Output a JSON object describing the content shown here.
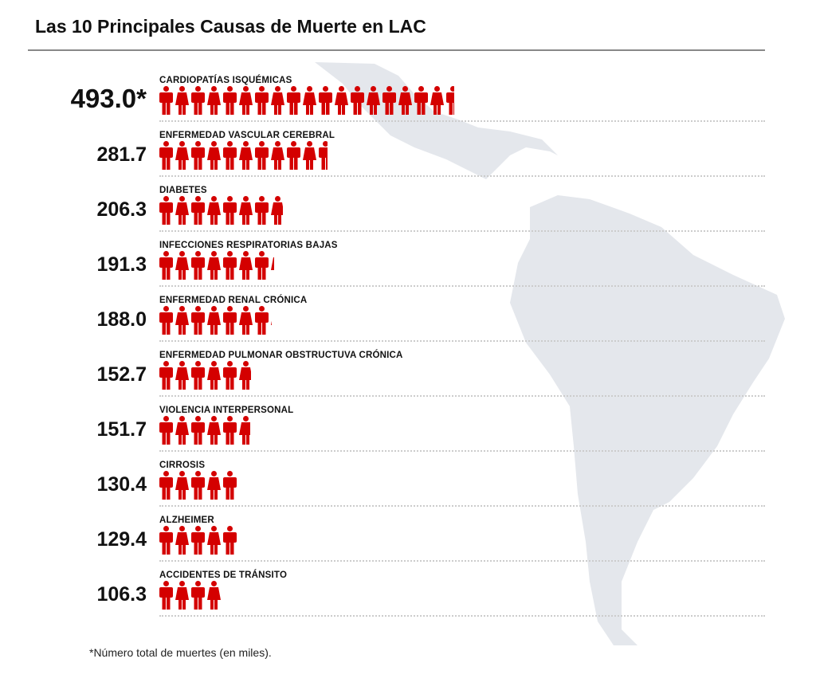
{
  "title": "Las 10 Principales Causas de Muerte en LAC",
  "footnote": "*Número total de muertes (en miles).",
  "colors": {
    "icon": "#d40000",
    "map": "#e4e7ec"
  },
  "chart_data": {
    "type": "pictogram",
    "title": "Las 10 Principales Causas de Muerte en LAC",
    "unit": "miles de muertes",
    "categories": [
      "CARDIOPATÍAS ISQUÉMICAS",
      "ENFERMEDAD VASCULAR CEREBRAL",
      "DIABETES",
      "INFECCIONES RESPIRATORIAS BAJAS",
      "ENFERMEDAD RENAL CRÓNICA",
      "ENFERMEDAD PULMONAR OBSTRUCTUVA CRÓNICA",
      "VIOLENCIA INTERPERSONAL",
      "CIRROSIS",
      "ALZHEIMER",
      "ACCIDENTES DE TRÁNSITO"
    ],
    "values": [
      493.0,
      281.7,
      206.3,
      191.3,
      188.0,
      152.7,
      151.7,
      130.4,
      129.4,
      106.3
    ],
    "value_labels": [
      "493.0*",
      "281.7",
      "206.3",
      "191.3",
      "188.0",
      "152.7",
      "151.7",
      "130.4",
      "129.4",
      "106.3"
    ]
  }
}
